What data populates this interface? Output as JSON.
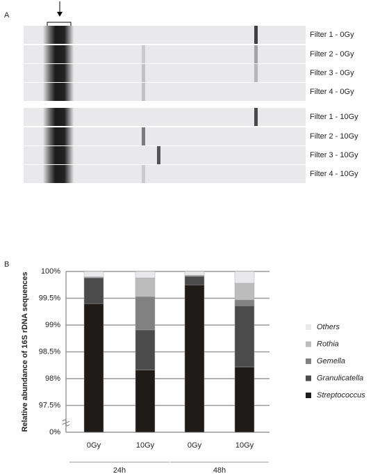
{
  "panel_labels": [
    "A",
    "B"
  ],
  "gel": {
    "lanes": [
      "Filter 1 - 0Gy",
      "Filter 2 - 0Gy",
      "Filter 3 - 0Gy",
      "Filter 4 - 0Gy",
      "Filter 1 - 10Gy",
      "Filter 2 - 10Gy",
      "Filter 3 - 10Gy",
      "Filter 4 - 10Gy"
    ]
  },
  "chart_data": {
    "type": "stacked_bar",
    "y_label": "Relative abundance of 16S rDNA sequences",
    "categories": [
      "0Gy",
      "10Gy",
      "0Gy",
      "10Gy"
    ],
    "groups": [
      {
        "name": "24h",
        "size": 2
      },
      {
        "name": "48h",
        "size": 2
      }
    ],
    "series": [
      {
        "name": "Streptococcus",
        "color": "#1f1b19",
        "values": [
          99.4,
          98.16,
          99.75,
          98.22
        ]
      },
      {
        "name": "Granulicatella",
        "color": "#4b4b4b",
        "values": [
          0.48,
          0.75,
          0.16,
          1.14
        ]
      },
      {
        "name": "Gemella",
        "color": "#818181",
        "values": [
          0.01,
          0.62,
          0.01,
          0.11
        ]
      },
      {
        "name": "Rothia",
        "color": "#bcbcbc",
        "values": [
          0.01,
          0.35,
          0.01,
          0.31
        ]
      },
      {
        "name": "Others",
        "color": "#e9e9eb",
        "values": [
          0.1,
          0.12,
          0.07,
          0.22
        ]
      }
    ],
    "ylim": [
      0,
      100
    ],
    "axis_break": [
      0,
      97
    ],
    "yticks": [
      {
        "value": 0,
        "label": "0%"
      },
      {
        "value": 97.5,
        "label": "97.5%"
      },
      {
        "value": 98,
        "label": "98%"
      },
      {
        "value": 98.5,
        "label": "98.5%"
      },
      {
        "value": 99,
        "label": "99%"
      },
      {
        "value": 99.5,
        "label": "99.5%"
      },
      {
        "value": 100,
        "label": "100%"
      }
    ],
    "grid": true,
    "legend": "right"
  }
}
